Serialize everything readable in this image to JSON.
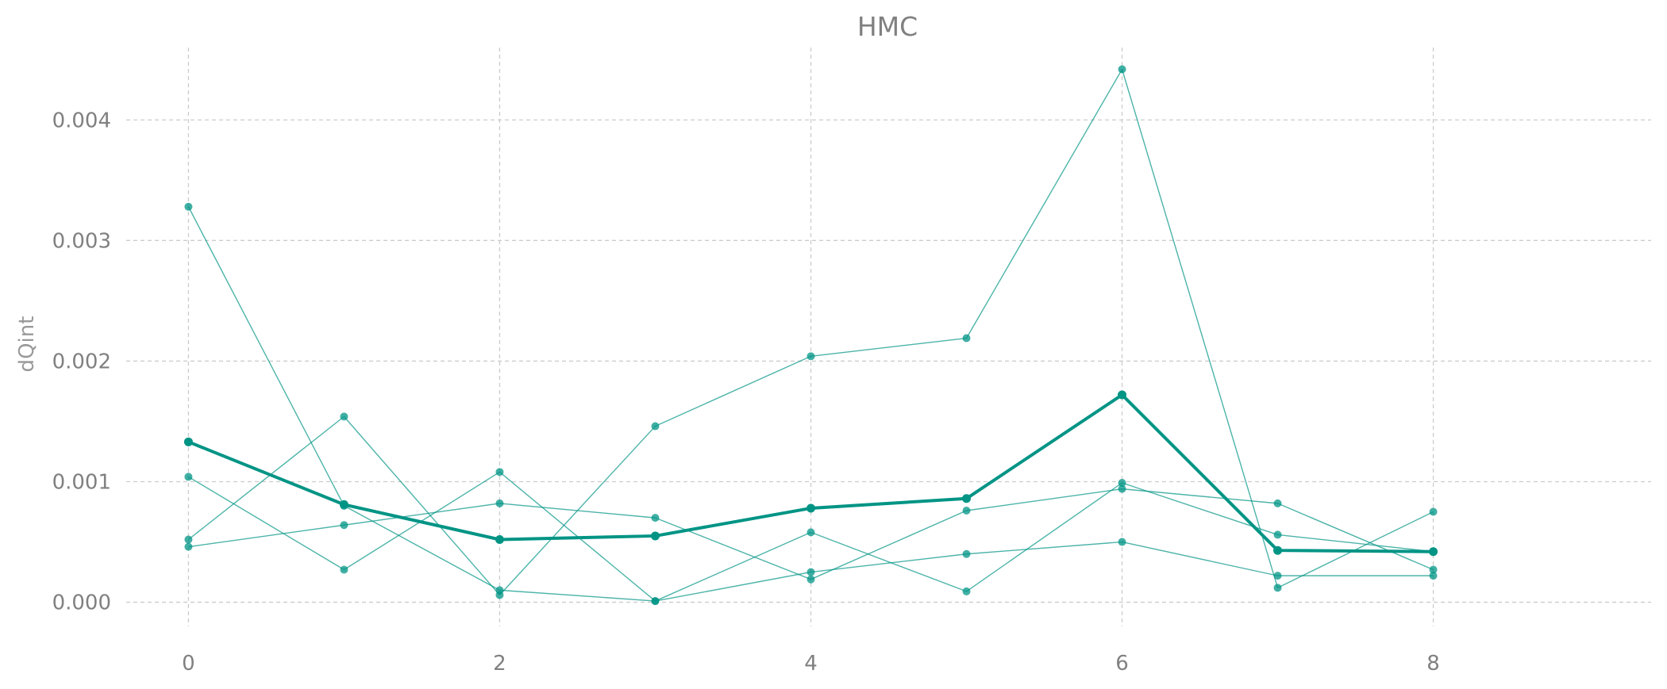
{
  "chart_data": {
    "type": "line",
    "title": "HMC",
    "xlabel": "",
    "ylabel": "dQint",
    "xlim": [
      -0.4,
      9.4
    ],
    "ylim": [
      -0.0002,
      0.0046
    ],
    "xticks": [
      0,
      2,
      4,
      6,
      8
    ],
    "xtick_labels": [
      "0",
      "2",
      "4",
      "6",
      "8"
    ],
    "yticks": [
      0.0,
      0.001,
      0.002,
      0.003,
      0.004
    ],
    "ytick_labels": [
      "0.000",
      "0.001",
      "0.002",
      "0.003",
      "0.004"
    ],
    "grid": true,
    "legend": "none",
    "x": [
      0,
      1,
      2,
      3,
      4,
      5,
      6,
      7,
      8
    ],
    "series": [
      {
        "values": [
          0.00328,
          0.0008,
          0.0001,
          1e-05,
          0.00025,
          0.0004,
          0.0005,
          0.00022,
          0.00022
        ],
        "emphasis": false
      },
      {
        "values": [
          0.00104,
          0.00027,
          0.00108,
          1e-05,
          0.00058,
          9e-05,
          0.00099,
          0.00056,
          0.00042
        ],
        "emphasis": false
      },
      {
        "values": [
          0.00052,
          0.00154,
          6e-05,
          0.00146,
          0.00204,
          0.00219,
          0.00442,
          0.00012,
          0.00075
        ],
        "emphasis": false
      },
      {
        "values": [
          0.00046,
          0.00064,
          0.00082,
          0.0007,
          0.00019,
          0.00076,
          0.00094,
          0.00082,
          0.00027
        ],
        "emphasis": false
      },
      {
        "values": [
          0.00133,
          0.00081,
          0.00052,
          0.00055,
          0.00078,
          0.00086,
          0.00172,
          0.00043,
          0.00042
        ],
        "emphasis": true
      }
    ],
    "colors": {
      "line": "#009485",
      "text": "#808080",
      "grid": "#cccccc"
    }
  }
}
